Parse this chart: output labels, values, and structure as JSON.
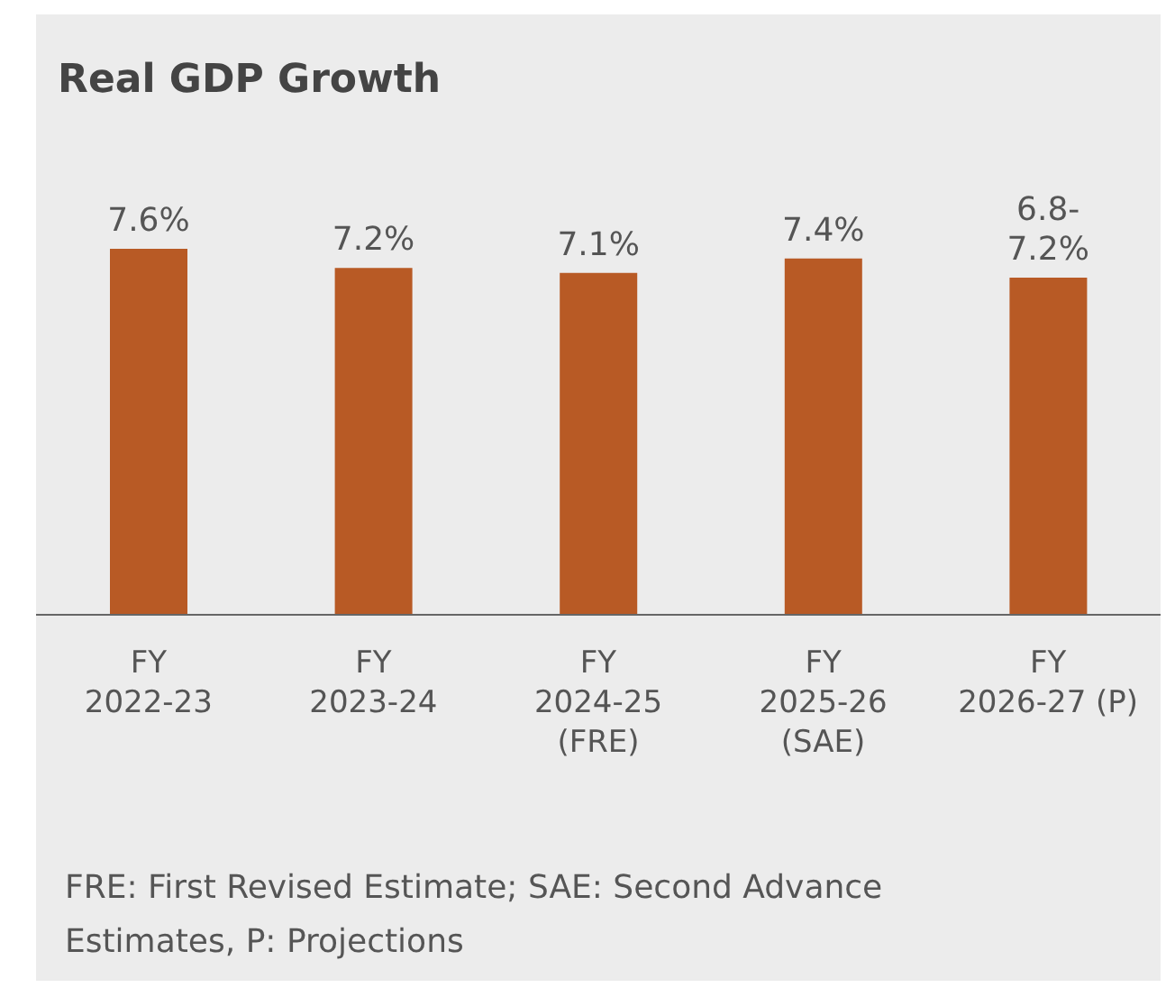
{
  "chart_data": {
    "type": "bar",
    "title": "Real GDP Growth",
    "categories": [
      "FY 2022-23",
      "FY 2023-24",
      "FY 2024-25 (FRE)",
      "FY 2025-26 (SAE)",
      "FY 2026-27 (P)"
    ],
    "values": [
      7.6,
      7.2,
      7.1,
      7.4,
      7.0
    ],
    "value_labels": [
      "7.6%",
      "7.2%",
      "7.1%",
      "7.4%",
      null
    ],
    "color": "#b85a25",
    "annotations": [
      {
        "text": "6.8-7.2%",
        "x": "FY 2026-27 (P)",
        "y": 7.0
      },
      "FRE: First Revised Estimate; SAE: Second Advance Estimates, P: Projections"
    ]
  }
}
